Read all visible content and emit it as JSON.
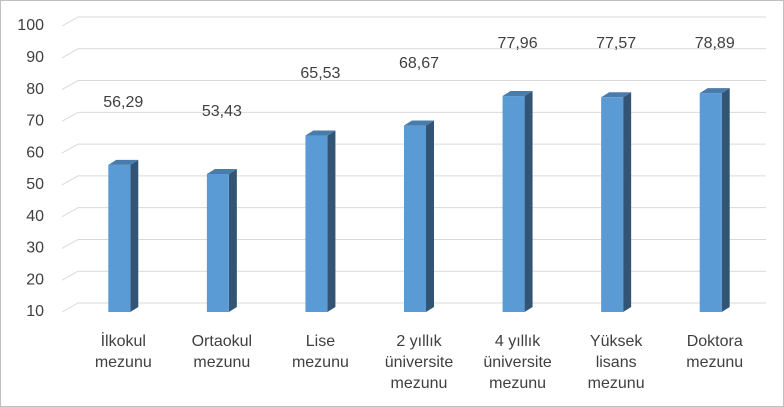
{
  "chart_data": {
    "type": "bar",
    "categories": [
      [
        "İlkokul",
        "mezunu"
      ],
      [
        "Ortaokul",
        "mezunu"
      ],
      [
        "Lise",
        "mezunu"
      ],
      [
        "2 yıllık",
        "üniversite",
        "mezunu"
      ],
      [
        "4 yıllık",
        "üniversite",
        "mezunu"
      ],
      [
        "Yüksek",
        "lisans",
        "mezunu"
      ],
      [
        "Doktora",
        "mezunu"
      ]
    ],
    "values": [
      56.29,
      53.43,
      65.53,
      68.67,
      77.96,
      77.57,
      78.89
    ],
    "value_labels": [
      "56,29",
      "53,43",
      "65,53",
      "68,67",
      "77,96",
      "77,57",
      "78,89"
    ],
    "color": "#5b9bd5",
    "ylim": [
      10,
      100
    ],
    "yticks": [
      10,
      20,
      30,
      40,
      50,
      60,
      70,
      80,
      90,
      100
    ],
    "grid": true
  }
}
